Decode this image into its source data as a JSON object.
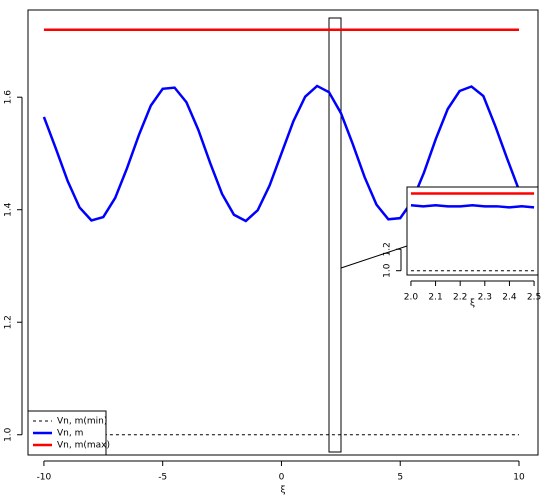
{
  "chart_data": [
    {
      "type": "line",
      "xlabel": "ξ",
      "legend": "bottomleft",
      "xlim": [
        -10.67,
        10.8
      ],
      "ylim": [
        0.964,
        1.755
      ],
      "xticks": [
        -10,
        -5,
        0,
        5,
        10
      ],
      "yticks": [
        {
          "value": 1.0,
          "label": "1.0"
        },
        {
          "value": 1.2,
          "label": "1.2"
        },
        {
          "value": 1.4,
          "label": "1.4"
        },
        {
          "value": 1.6,
          "label": "1.6"
        }
      ],
      "series": [
        {
          "name": "Vn, m(min)",
          "color": "#000000",
          "linestyle": "dashed",
          "x": [
            -10,
            10
          ],
          "values": [
            1.0,
            1.0
          ]
        },
        {
          "name": "Vn, m",
          "color": "#0000ff",
          "linestyle": "solid",
          "x": [
            -10,
            -9.5,
            -9,
            -8.5,
            -8,
            -7.5,
            -7,
            -6.5,
            -6,
            -5.5,
            -5,
            -4.5,
            -4,
            -3.5,
            -3,
            -2.5,
            -2,
            -1.5,
            -1,
            -0.5,
            0,
            0.5,
            1,
            1.5,
            2,
            2.5,
            3,
            3.5,
            4,
            4.5,
            5,
            5.5,
            6,
            6.5,
            7,
            7.5,
            8,
            8.5,
            9,
            9.5,
            10
          ],
          "values": [
            1.565,
            1.509,
            1.451,
            1.404,
            1.381,
            1.387,
            1.421,
            1.474,
            1.533,
            1.585,
            1.615,
            1.617,
            1.591,
            1.542,
            1.483,
            1.428,
            1.391,
            1.38,
            1.399,
            1.443,
            1.5,
            1.557,
            1.601,
            1.62,
            1.609,
            1.572,
            1.517,
            1.458,
            1.409,
            1.383,
            1.385,
            1.415,
            1.466,
            1.526,
            1.579,
            1.611,
            1.619,
            1.602,
            1.549,
            1.491,
            1.435
          ]
        },
        {
          "name": "Vn, m(max)",
          "color": "#ff0000",
          "linestyle": "solid",
          "x": [
            -10,
            10
          ],
          "values": [
            1.72,
            1.72
          ]
        }
      ]
    },
    {
      "type": "line",
      "xlabel": "ξ",
      "xlim": [
        1.984,
        2.516
      ],
      "ylim": [
        0.96,
        1.78
      ],
      "xticks": [
        {
          "value": 2.0,
          "label": "2.0"
        },
        2.1,
        2.2,
        2.3,
        2.4,
        {
          "value": 2.5,
          "label": "2.5"
        }
      ],
      "yticks": [
        {
          "value": 1.0,
          "label": "1.0"
        },
        {
          "value": 1.2,
          "label": "1.2"
        }
      ],
      "series": [
        {
          "color": "#000000",
          "linestyle": "dashed",
          "x": [
            2.0,
            2.5
          ],
          "values": [
            1.0,
            1.0
          ]
        },
        {
          "color": "#0000ff",
          "linestyle": "solid",
          "x": [
            2.0,
            2.05,
            2.1,
            2.15,
            2.2,
            2.25,
            2.3,
            2.35,
            2.4,
            2.45,
            2.5
          ],
          "values": [
            1.61,
            1.6,
            1.61,
            1.6,
            1.6,
            1.61,
            1.6,
            1.6,
            1.59,
            1.6,
            1.59
          ]
        },
        {
          "color": "#ff0000",
          "linestyle": "solid",
          "x": [
            2.0,
            2.5
          ],
          "values": [
            1.72,
            1.72
          ]
        }
      ]
    }
  ]
}
